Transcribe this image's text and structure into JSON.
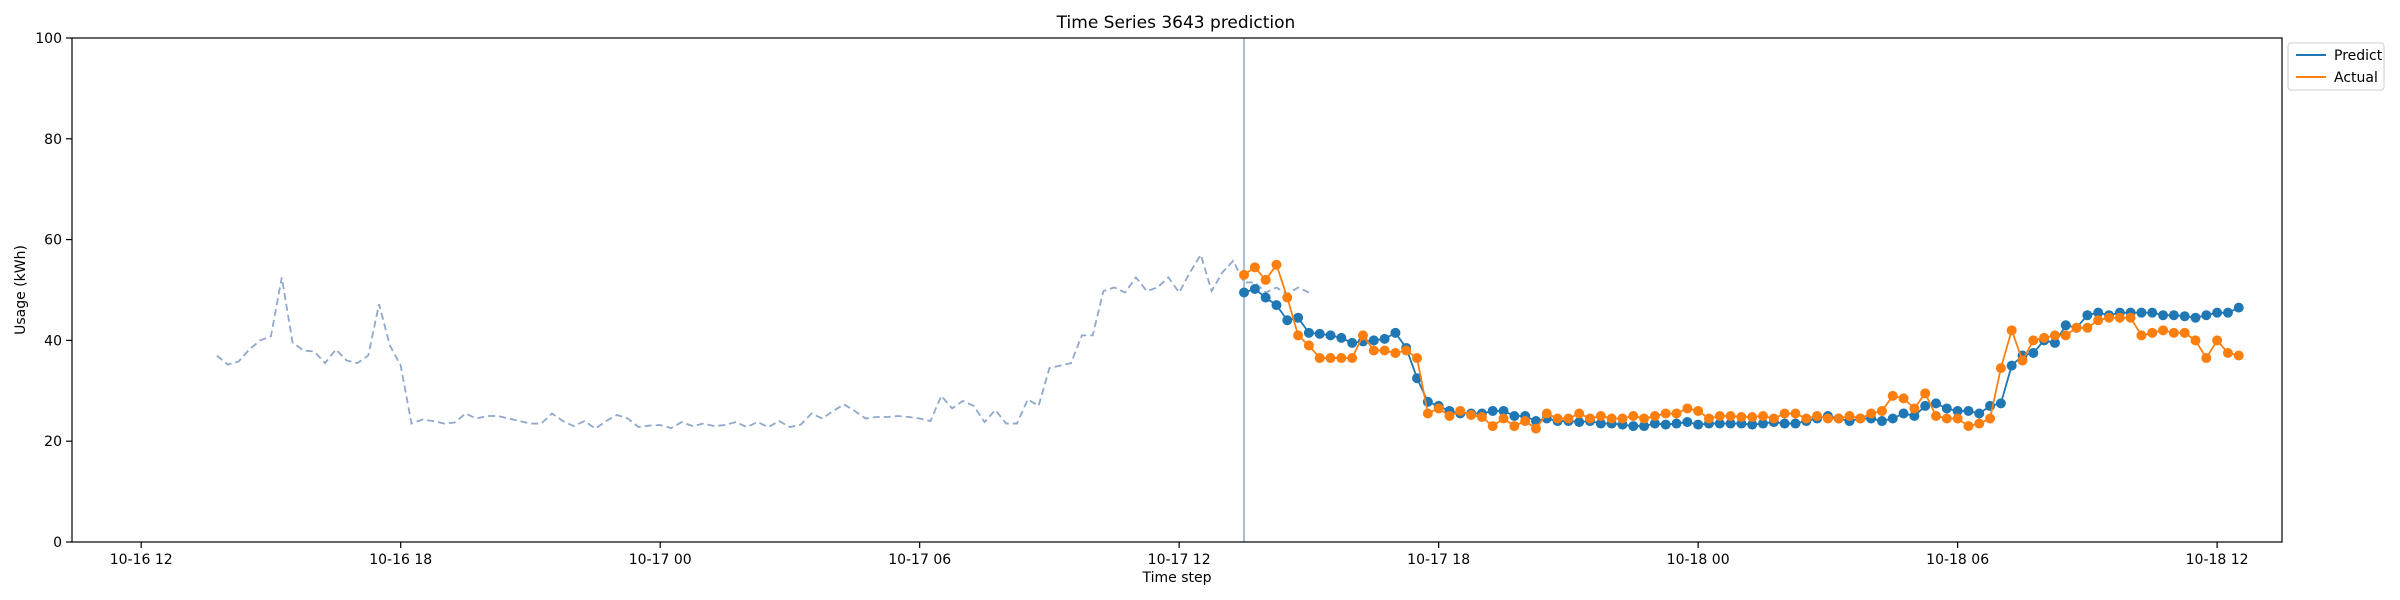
{
  "chart_data": {
    "type": "line",
    "title": "Time Series 3643 prediction",
    "xlabel": "Time step",
    "ylabel": "Usage (kWh)",
    "ylim": [
      0,
      100
    ],
    "yticks": [
      0,
      20,
      40,
      60,
      80,
      100
    ],
    "x_unit": "hours",
    "xlim": [
      -1.6,
      49.5
    ],
    "xticks": [
      {
        "x": 0,
        "label": "10-16 12"
      },
      {
        "x": 6,
        "label": "10-16 18"
      },
      {
        "x": 12,
        "label": "10-17 00"
      },
      {
        "x": 18,
        "label": "10-17 06"
      },
      {
        "x": 24,
        "label": "10-17 12"
      },
      {
        "x": 30,
        "label": "10-17 18"
      },
      {
        "x": 36,
        "label": "10-18 00"
      },
      {
        "x": 42,
        "label": "10-18 06"
      },
      {
        "x": 48,
        "label": "10-18 12"
      }
    ],
    "grid": false,
    "legend_position": "top-right, outside plot",
    "forecast_start_x": 25.5,
    "history": {
      "x_start": 1.75,
      "x_step": 0.25,
      "color": "#8fa8cc",
      "style": "dashed",
      "values": [
        37,
        35.2,
        35.8,
        38.2,
        40,
        40.8,
        52.5,
        39.6,
        38,
        37.8,
        35.5,
        38.2,
        36,
        35.5,
        37,
        47.2,
        39,
        35,
        23.5,
        24.3,
        24,
        23.5,
        23.7,
        25.5,
        24.5,
        25,
        25,
        24.5,
        24,
        23.5,
        23.5,
        25.5,
        24,
        23,
        24,
        22.5,
        24,
        25.2,
        24.5,
        22.8,
        23.1,
        23.2,
        22.6,
        23.8,
        23,
        23.5,
        23,
        23.2,
        23.8,
        22.8,
        23.8,
        22.8,
        24,
        22.8,
        23.3,
        25.5,
        24.5,
        26,
        27.3,
        26,
        24.5,
        24.8,
        24.8,
        25,
        24.8,
        24.5,
        24,
        29,
        26.5,
        28,
        27,
        23.8,
        26.2,
        23.5,
        23.5,
        28.3,
        27,
        34.5,
        35,
        35.5,
        41,
        41,
        49.8,
        50.5,
        49.5,
        52.5,
        49.8,
        50.5,
        52.5,
        49.5,
        53.5,
        57,
        49.8,
        53.5,
        55.8,
        51.5,
        51.5,
        49.5,
        50.5,
        49.2,
        50.5,
        49.5
      ]
    },
    "series": [
      {
        "name": "Predict",
        "color": "#1f77b4",
        "x_start": 25.5,
        "x_step": 0.25,
        "values": [
          49.5,
          50.2,
          48.5,
          47,
          44,
          44.5,
          41.5,
          41.3,
          41,
          40.5,
          39.5,
          39.8,
          40,
          40.3,
          41.5,
          38.5,
          32.5,
          27.8,
          27,
          26,
          25.5,
          25.5,
          25.5,
          26,
          26,
          25,
          25,
          24,
          24.5,
          24,
          24,
          23.8,
          24,
          23.5,
          23.5,
          23.3,
          23,
          23,
          23.5,
          23.3,
          23.5,
          23.8,
          23.3,
          23.5,
          23.5,
          23.5,
          23.5,
          23.3,
          23.5,
          23.8,
          23.5,
          23.5,
          24,
          24.5,
          25,
          24.5,
          24,
          24.5,
          24.5,
          24,
          24.5,
          25.5,
          25,
          27,
          27.5,
          26.5,
          26,
          26,
          25.5,
          27,
          27.5,
          35,
          37,
          37.5,
          40,
          39.5,
          43,
          42.5,
          45,
          45.5,
          45,
          45.5,
          45.5,
          45.5,
          45.5,
          45,
          45,
          44.8,
          44.5,
          45,
          45.5,
          45.5,
          46.5
        ]
      },
      {
        "name": "Actual",
        "color": "#ff7f0e",
        "x_start": 25.5,
        "x_step": 0.25,
        "values": [
          53,
          54.5,
          52,
          55,
          48.5,
          41,
          39,
          36.5,
          36.5,
          36.5,
          36.5,
          41,
          38,
          38,
          37.5,
          38,
          36.5,
          25.5,
          26.5,
          25,
          26,
          25.2,
          24.8,
          23,
          24.5,
          23,
          24,
          22.5,
          25.5,
          24.5,
          24.5,
          25.5,
          24.5,
          25,
          24.5,
          24.5,
          25,
          24.5,
          25,
          25.5,
          25.5,
          26.5,
          26,
          24.5,
          25,
          25,
          24.8,
          24.8,
          25,
          24.5,
          25.5,
          25.5,
          24.5,
          25,
          24.5,
          24.5,
          25,
          24.5,
          25.5,
          26,
          29,
          28.5,
          26.5,
          29.5,
          25,
          24.5,
          24.5,
          23,
          23.5,
          24.5,
          34.5,
          42,
          36,
          40,
          40.5,
          41,
          41,
          42.5,
          42.5,
          44,
          44.5,
          44.5,
          44.5,
          41,
          41.5,
          42,
          41.5,
          41.5,
          40,
          36.5,
          40,
          37.5,
          37
        ]
      }
    ]
  }
}
